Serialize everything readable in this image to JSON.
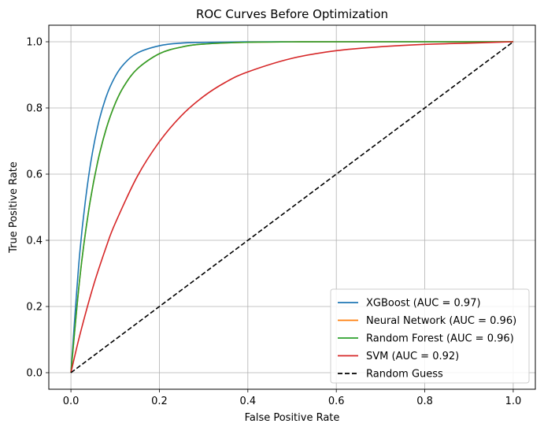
{
  "chart_data": {
    "type": "line",
    "title": "ROC Curves Before Optimization",
    "xlabel": "False Positive Rate",
    "ylabel": "True Positive Rate",
    "xlim": [
      -0.05,
      1.05
    ],
    "ylim": [
      -0.05,
      1.05
    ],
    "xticks": [
      0.0,
      0.2,
      0.4,
      0.6,
      0.8,
      1.0
    ],
    "yticks": [
      0.0,
      0.2,
      0.4,
      0.6,
      0.8,
      1.0
    ],
    "xtick_labels": [
      "0.0",
      "0.2",
      "0.4",
      "0.6",
      "0.8",
      "1.0"
    ],
    "ytick_labels": [
      "0.0",
      "0.2",
      "0.4",
      "0.6",
      "0.8",
      "1.0"
    ],
    "grid": true,
    "legend_position": "lower-right",
    "series": [
      {
        "name": "XGBoost (AUC = 0.97)",
        "color": "#1f77b4",
        "dash": "solid",
        "x": [
          0.0,
          0.02,
          0.04,
          0.06,
          0.08,
          0.1,
          0.12,
          0.15,
          0.2,
          0.25,
          0.3,
          0.4,
          0.5,
          0.6,
          0.8,
          1.0
        ],
        "y": [
          0.0,
          0.362,
          0.593,
          0.741,
          0.835,
          0.895,
          0.933,
          0.966,
          0.988,
          0.996,
          0.998,
          0.9998,
          1.0,
          1.0,
          1.0,
          1.0
        ]
      },
      {
        "name": "Neural Network (AUC = 0.96)",
        "color": "#ff7f0e",
        "dash": "solid",
        "x": [
          0.0,
          0.02,
          0.04,
          0.06,
          0.08,
          0.1,
          0.12,
          0.15,
          0.2,
          0.25,
          0.3,
          0.4,
          0.5,
          0.6,
          0.8,
          1.0
        ],
        "y": [
          0.0,
          0.285,
          0.489,
          0.634,
          0.738,
          0.813,
          0.866,
          0.918,
          0.964,
          0.984,
          0.993,
          0.9985,
          0.9997,
          1.0,
          1.0,
          1.0
        ]
      },
      {
        "name": "Random Forest (AUC = 0.96)",
        "color": "#2ca02c",
        "dash": "solid",
        "x": [
          0.0,
          0.02,
          0.04,
          0.06,
          0.08,
          0.1,
          0.12,
          0.15,
          0.2,
          0.25,
          0.3,
          0.4,
          0.5,
          0.6,
          0.8,
          1.0
        ],
        "y": [
          0.0,
          0.285,
          0.489,
          0.634,
          0.738,
          0.813,
          0.866,
          0.918,
          0.964,
          0.984,
          0.993,
          0.9985,
          0.9997,
          1.0,
          1.0,
          1.0
        ]
      },
      {
        "name": "SVM (AUC = 0.92)",
        "color": "#d62728",
        "dash": "solid",
        "x": [
          0.0,
          0.02,
          0.05,
          0.08,
          0.1,
          0.15,
          0.2,
          0.25,
          0.3,
          0.35,
          0.4,
          0.5,
          0.6,
          0.7,
          0.8,
          0.9,
          1.0
        ],
        "y": [
          0.0,
          0.113,
          0.259,
          0.381,
          0.451,
          0.593,
          0.698,
          0.777,
          0.835,
          0.878,
          0.909,
          0.95,
          0.973,
          0.985,
          0.992,
          0.996,
          1.0
        ]
      },
      {
        "name": "Random Guess",
        "color": "#000000",
        "dash": "dashed",
        "x": [
          0.0,
          1.0
        ],
        "y": [
          0.0,
          1.0
        ]
      }
    ]
  }
}
